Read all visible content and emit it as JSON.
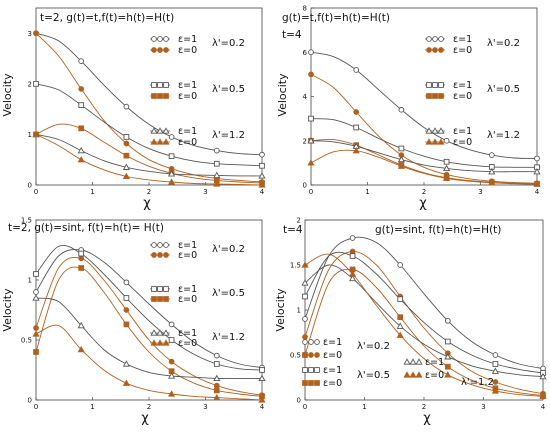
{
  "chart_data": [
    {
      "type": "line",
      "title": "t=2, g(t)=t,f(t)=h(t)=H(t)",
      "xlabel": "χ",
      "ylabel": "Velocity",
      "xlim": [
        0,
        4
      ],
      "ylim": [
        0,
        3.5
      ],
      "xticks": [
        "0",
        "1",
        "2",
        "3",
        "4"
      ],
      "yticks": [
        "0",
        "1",
        "2",
        "3"
      ],
      "legend": [
        {
          "eps": "ε=1",
          "lambda": "λ'=0.2",
          "marker": "open-circle"
        },
        {
          "eps": "ε=0",
          "marker": "filled-circle"
        },
        {
          "eps": "ε=1",
          "lambda": "λ'=0.5",
          "marker": "open-square"
        },
        {
          "eps": "ε=0",
          "marker": "filled-square"
        },
        {
          "eps": "ε=1",
          "lambda": "λ'=1.2",
          "marker": "open-triangle"
        },
        {
          "eps": "ε=0",
          "marker": "filled-triangle"
        }
      ],
      "series": [
        {
          "marker": "open-circle",
          "color": "#555555",
          "x": [
            0,
            0.4,
            0.8,
            1.2,
            1.6,
            2.0,
            2.4,
            2.8,
            3.2,
            3.6,
            4.0
          ],
          "y": [
            3.0,
            2.85,
            2.45,
            1.98,
            1.55,
            1.2,
            0.95,
            0.78,
            0.68,
            0.62,
            0.6
          ]
        },
        {
          "marker": "filled-circle",
          "color": "#b06020",
          "x": [
            0,
            0.4,
            0.8,
            1.2,
            1.6,
            2.0,
            2.4,
            2.8,
            3.2,
            3.6,
            4.0
          ],
          "y": [
            3.0,
            2.55,
            1.9,
            1.28,
            0.82,
            0.5,
            0.32,
            0.2,
            0.13,
            0.09,
            0.06
          ]
        },
        {
          "marker": "open-square",
          "color": "#555555",
          "x": [
            0,
            0.4,
            0.8,
            1.2,
            1.6,
            2.0,
            2.4,
            2.8,
            3.2,
            3.6,
            4.0
          ],
          "y": [
            2.0,
            1.88,
            1.58,
            1.25,
            0.95,
            0.72,
            0.57,
            0.47,
            0.42,
            0.4,
            0.38
          ]
        },
        {
          "marker": "filled-square",
          "color": "#b06020",
          "x": [
            0,
            0.4,
            0.8,
            1.2,
            1.6,
            2.0,
            2.4,
            2.8,
            3.2,
            3.6,
            4.0
          ],
          "y": [
            1.0,
            1.2,
            1.12,
            0.85,
            0.58,
            0.37,
            0.23,
            0.14,
            0.09,
            0.06,
            0.04
          ]
        },
        {
          "marker": "open-triangle",
          "color": "#555555",
          "x": [
            0,
            0.4,
            0.8,
            1.2,
            1.6,
            2.0,
            2.4,
            2.8,
            3.2,
            3.6,
            4.0
          ],
          "y": [
            1.0,
            0.9,
            0.68,
            0.48,
            0.35,
            0.27,
            0.22,
            0.2,
            0.19,
            0.18,
            0.18
          ]
        },
        {
          "marker": "filled-triangle",
          "color": "#b06020",
          "x": [
            0,
            0.4,
            0.8,
            1.2,
            1.6,
            2.0,
            2.4,
            2.8,
            3.2,
            3.6,
            4.0
          ],
          "y": [
            1.0,
            0.78,
            0.5,
            0.3,
            0.17,
            0.1,
            0.06,
            0.03,
            0.02,
            0.01,
            0.0
          ]
        }
      ]
    },
    {
      "type": "line",
      "title": "g(t)=t,f(t)=h(t)=H(t)",
      "subtitle": "t=4",
      "xlabel": "χ",
      "ylabel": "Velocity",
      "xlim": [
        0,
        4
      ],
      "ylim": [
        0,
        8
      ],
      "xticks": [
        "0",
        "1",
        "2",
        "3",
        "4"
      ],
      "yticks": [
        "0",
        "2",
        "4",
        "6",
        "8"
      ],
      "legend": [
        {
          "eps": "ε=1",
          "lambda": "λ'=0.2",
          "marker": "open-circle"
        },
        {
          "eps": "ε=0",
          "marker": "filled-circle"
        },
        {
          "eps": "ε=1",
          "lambda": "λ'=0.5",
          "marker": "open-square"
        },
        {
          "eps": "ε=0",
          "marker": "filled-square"
        },
        {
          "eps": "ε=1",
          "lambda": "λ'=1.2",
          "marker": "open-triangle"
        },
        {
          "eps": "ε=0",
          "marker": "filled-triangle"
        }
      ],
      "series": [
        {
          "marker": "open-circle",
          "color": "#555555",
          "x": [
            0,
            0.4,
            0.8,
            1.2,
            1.6,
            2.0,
            2.4,
            2.8,
            3.2,
            3.6,
            4.0
          ],
          "y": [
            6.0,
            5.8,
            5.2,
            4.3,
            3.4,
            2.6,
            2.0,
            1.6,
            1.35,
            1.22,
            1.2
          ]
        },
        {
          "marker": "filled-circle",
          "color": "#b06020",
          "x": [
            0,
            0.4,
            0.8,
            1.2,
            1.6,
            2.0,
            2.4,
            2.8,
            3.2,
            3.6,
            4.0
          ],
          "y": [
            5.0,
            4.4,
            3.3,
            2.2,
            1.35,
            0.8,
            0.47,
            0.28,
            0.17,
            0.11,
            0.08
          ]
        },
        {
          "marker": "open-square",
          "color": "#555555",
          "x": [
            0,
            0.4,
            0.8,
            1.2,
            1.6,
            2.0,
            2.4,
            2.8,
            3.2,
            3.6,
            4.0
          ],
          "y": [
            3.0,
            2.95,
            2.6,
            2.1,
            1.65,
            1.3,
            1.05,
            0.9,
            0.82,
            0.8,
            0.8
          ]
        },
        {
          "marker": "filled-square",
          "color": "#b06020",
          "x": [
            0,
            0.4,
            0.8,
            1.2,
            1.6,
            2.0,
            2.4,
            2.8,
            3.2,
            3.6,
            4.0
          ],
          "y": [
            2.0,
            2.05,
            1.8,
            1.35,
            0.9,
            0.55,
            0.33,
            0.2,
            0.12,
            0.08,
            0.05
          ]
        },
        {
          "marker": "open-triangle",
          "color": "#555555",
          "x": [
            0,
            0.4,
            0.8,
            1.2,
            1.6,
            2.0,
            2.4,
            2.8,
            3.2,
            3.6,
            4.0
          ],
          "y": [
            2.0,
            1.95,
            1.75,
            1.45,
            1.15,
            0.9,
            0.75,
            0.65,
            0.6,
            0.6,
            0.6
          ]
        },
        {
          "marker": "filled-triangle",
          "color": "#b06020",
          "x": [
            0,
            0.4,
            0.8,
            1.2,
            1.6,
            2.0,
            2.4,
            2.8,
            3.2,
            3.6,
            4.0
          ],
          "y": [
            1.0,
            1.5,
            1.55,
            1.25,
            0.85,
            0.52,
            0.3,
            0.17,
            0.1,
            0.06,
            0.04
          ]
        }
      ]
    },
    {
      "type": "line",
      "title": "t=2, g(t)=sint, f(t)=h(t)= H(t)",
      "xlabel": "χ",
      "ylabel": "Velocity",
      "xlim": [
        0,
        4
      ],
      "ylim": [
        0,
        1.5
      ],
      "xticks": [
        "0",
        "1",
        "2",
        "3",
        "4"
      ],
      "yticks": [
        "0",
        "0.5",
        "1",
        "1.5"
      ],
      "legend": [
        {
          "eps": "ε=1",
          "lambda": "λ'=0.2",
          "marker": "open-circle"
        },
        {
          "eps": "ε=0",
          "marker": "filled-circle"
        },
        {
          "eps": "ε=1",
          "lambda": "λ'=0.5",
          "marker": "open-square"
        },
        {
          "eps": "ε=0",
          "marker": "filled-square"
        },
        {
          "eps": "ε=1",
          "lambda": "λ'=1.2",
          "marker": "open-triangle"
        },
        {
          "eps": "ε=0",
          "marker": "filled-triangle"
        }
      ],
      "series": [
        {
          "marker": "open-circle",
          "color": "#555555",
          "x": [
            0,
            0.4,
            0.8,
            1.2,
            1.6,
            2.0,
            2.4,
            2.8,
            3.2,
            3.6,
            4.0
          ],
          "y": [
            0.9,
            1.2,
            1.25,
            1.15,
            0.98,
            0.8,
            0.63,
            0.48,
            0.37,
            0.3,
            0.27
          ]
        },
        {
          "marker": "filled-circle",
          "color": "#b06020",
          "x": [
            0,
            0.4,
            0.8,
            1.2,
            1.6,
            2.0,
            2.4,
            2.8,
            3.2,
            3.6,
            4.0
          ],
          "y": [
            0.6,
            1.1,
            1.18,
            1.0,
            0.75,
            0.5,
            0.32,
            0.2,
            0.12,
            0.07,
            0.04
          ]
        },
        {
          "marker": "open-square",
          "color": "#555555",
          "x": [
            0,
            0.4,
            0.8,
            1.2,
            1.6,
            2.0,
            2.4,
            2.8,
            3.2,
            3.6,
            4.0
          ],
          "y": [
            1.05,
            1.28,
            1.22,
            1.05,
            0.85,
            0.66,
            0.5,
            0.38,
            0.3,
            0.26,
            0.25
          ]
        },
        {
          "marker": "filled-square",
          "color": "#b06020",
          "x": [
            0,
            0.4,
            0.8,
            1.2,
            1.6,
            2.0,
            2.4,
            2.8,
            3.2,
            3.6,
            4.0
          ],
          "y": [
            0.4,
            1.0,
            1.1,
            0.9,
            0.63,
            0.4,
            0.24,
            0.14,
            0.08,
            0.05,
            0.03
          ]
        },
        {
          "marker": "open-triangle",
          "color": "#555555",
          "x": [
            0,
            0.4,
            0.8,
            1.2,
            1.6,
            2.0,
            2.4,
            2.8,
            3.2,
            3.6,
            4.0
          ],
          "y": [
            0.85,
            0.82,
            0.62,
            0.42,
            0.3,
            0.23,
            0.2,
            0.19,
            0.18,
            0.18,
            0.18
          ]
        },
        {
          "marker": "filled-triangle",
          "color": "#b06020",
          "x": [
            0,
            0.4,
            0.8,
            1.2,
            1.6,
            2.0,
            2.4,
            2.8,
            3.2,
            3.6,
            4.0
          ],
          "y": [
            0.55,
            0.62,
            0.42,
            0.25,
            0.14,
            0.08,
            0.05,
            0.03,
            0.02,
            0.01,
            0.0
          ]
        }
      ]
    },
    {
      "type": "line",
      "title": "g(t)=sint, f(t)=h(t)=H(t)",
      "subtitle": "t=4",
      "xlabel": "χ",
      "ylabel": "Velocity",
      "xlim": [
        0,
        4
      ],
      "ylim": [
        0,
        2
      ],
      "xticks": [
        "0",
        "1",
        "2",
        "3",
        "4"
      ],
      "yticks": [
        "0",
        "0.5",
        "1",
        "1.5",
        "2"
      ],
      "legend": [
        {
          "eps": "ε=1",
          "lambda": "λ'=0.2",
          "marker": "open-circle"
        },
        {
          "eps": "ε=0",
          "marker": "filled-circle"
        },
        {
          "eps": "ε=1",
          "lambda": "λ'=0.5",
          "marker": "open-square"
        },
        {
          "eps": "ε=0",
          "marker": "filled-square"
        },
        {
          "eps": "ε=1",
          "lambda": "λ'=1.2",
          "marker": "open-triangle"
        },
        {
          "eps": "ε=0",
          "marker": "filled-triangle"
        }
      ],
      "series": [
        {
          "marker": "open-circle",
          "color": "#555555",
          "x": [
            0,
            0.4,
            0.8,
            1.2,
            1.6,
            2.0,
            2.4,
            2.8,
            3.2,
            3.6,
            4.0
          ],
          "y": [
            0.9,
            1.6,
            1.8,
            1.75,
            1.5,
            1.18,
            0.88,
            0.65,
            0.5,
            0.4,
            0.35
          ]
        },
        {
          "marker": "filled-circle",
          "color": "#b06020",
          "x": [
            0,
            0.4,
            0.8,
            1.2,
            1.6,
            2.0,
            2.4,
            2.8,
            3.2,
            3.6,
            4.0
          ],
          "y": [
            0.7,
            1.45,
            1.65,
            1.5,
            1.15,
            0.8,
            0.52,
            0.32,
            0.2,
            0.12,
            0.07
          ]
        },
        {
          "marker": "open-square",
          "color": "#555555",
          "x": [
            0,
            0.4,
            0.8,
            1.2,
            1.6,
            2.0,
            2.4,
            2.8,
            3.2,
            3.6,
            4.0
          ],
          "y": [
            1.15,
            1.6,
            1.6,
            1.4,
            1.12,
            0.86,
            0.65,
            0.5,
            0.4,
            0.34,
            0.3
          ]
        },
        {
          "marker": "filled-square",
          "color": "#b06020",
          "x": [
            0,
            0.4,
            0.8,
            1.2,
            1.6,
            2.0,
            2.4,
            2.8,
            3.2,
            3.6,
            4.0
          ],
          "y": [
            0.5,
            1.3,
            1.45,
            1.25,
            0.92,
            0.6,
            0.37,
            0.22,
            0.13,
            0.08,
            0.05
          ]
        },
        {
          "marker": "open-triangle",
          "color": "#555555",
          "x": [
            0,
            0.4,
            0.8,
            1.2,
            1.6,
            2.0,
            2.4,
            2.8,
            3.2,
            3.6,
            4.0
          ],
          "y": [
            1.3,
            1.5,
            1.35,
            1.08,
            0.82,
            0.62,
            0.48,
            0.38,
            0.32,
            0.28,
            0.26
          ]
        },
        {
          "marker": "filled-triangle",
          "color": "#b06020",
          "x": [
            0,
            0.4,
            0.8,
            1.2,
            1.6,
            2.0,
            2.4,
            2.8,
            3.2,
            3.6,
            4.0
          ],
          "y": [
            1.5,
            1.62,
            1.4,
            1.05,
            0.72,
            0.46,
            0.28,
            0.17,
            0.1,
            0.06,
            0.04
          ]
        }
      ]
    }
  ]
}
